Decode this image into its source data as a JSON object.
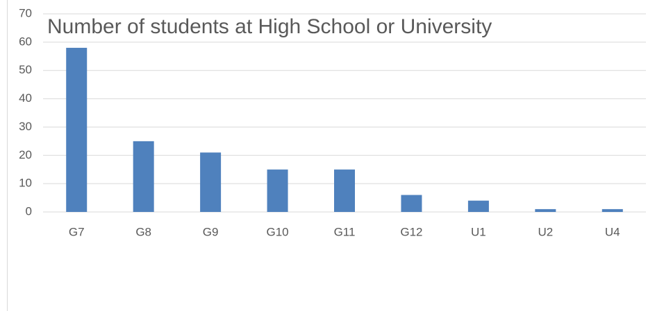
{
  "chart_data": {
    "type": "bar",
    "title": "Number of students at High School or University",
    "categories": [
      "G7",
      "G8",
      "G9",
      "G10",
      "G11",
      "G12",
      "U1",
      "U2",
      "U4"
    ],
    "values": [
      58,
      25,
      21,
      15,
      15,
      6,
      4,
      1,
      1
    ],
    "color": "#4f81bd",
    "ylim": [
      0,
      70
    ],
    "yticks": [
      0,
      10,
      20,
      30,
      40,
      50,
      60,
      70
    ],
    "grid": true
  }
}
